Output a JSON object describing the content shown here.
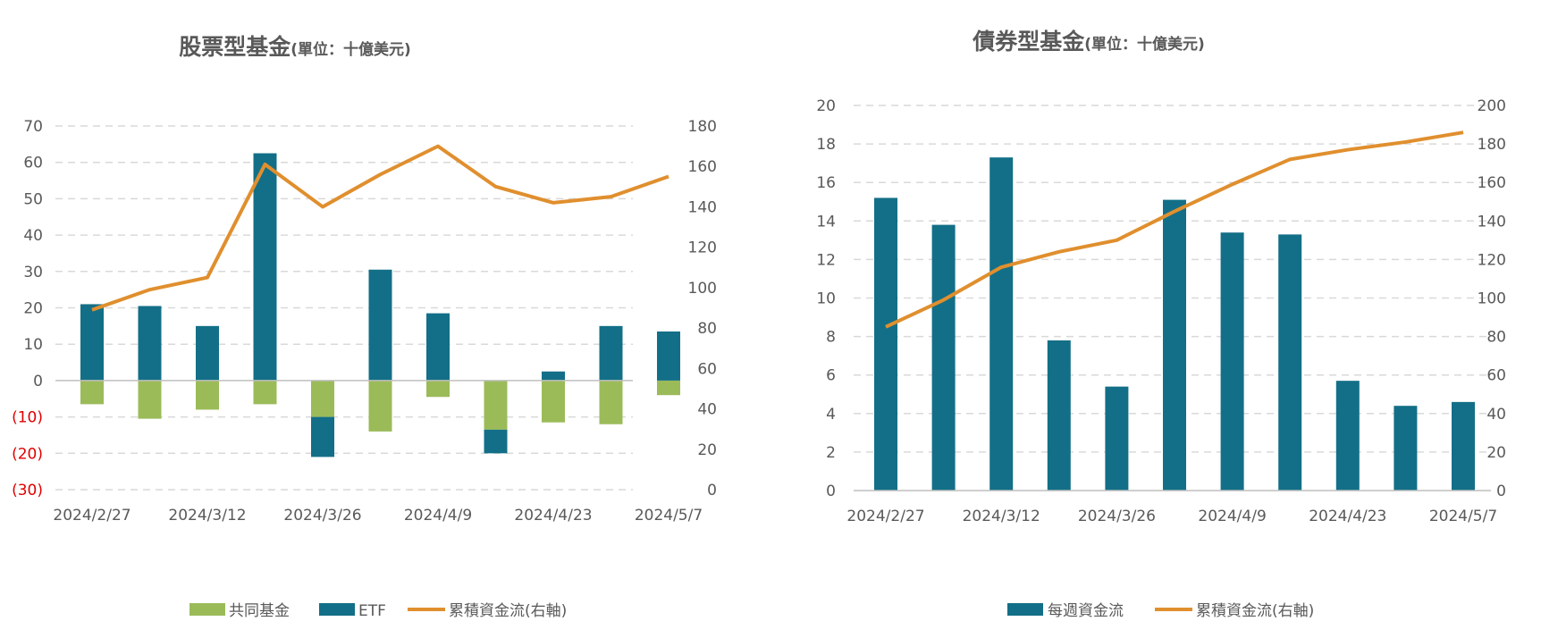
{
  "colors": {
    "mutual": "#9bbb59",
    "etf": "#136f87",
    "cum": "#e08f2e",
    "neg_label": "#e00000"
  },
  "chart_data": [
    {
      "type": "bar",
      "title": "股票型基金",
      "subtitle": "(單位：十億美元)",
      "x_tick_labels": [
        "2024/2/27",
        "2024/3/12",
        "2024/3/26",
        "2024/4/9",
        "2024/4/23",
        "2024/5/7"
      ],
      "y_left": {
        "ylim": [
          -30,
          70
        ],
        "ticks": [
          "70",
          "60",
          "50",
          "40",
          "30",
          "20",
          "10",
          "0",
          "(10)",
          "(20)",
          "(30)"
        ]
      },
      "y_right": {
        "ylim": [
          0,
          180
        ],
        "ticks": [
          "180",
          "160",
          "140",
          "120",
          "100",
          "80",
          "60",
          "40",
          "20",
          "0"
        ]
      },
      "grid": true,
      "legend_position": "bottom",
      "series": [
        {
          "name": "共同基金",
          "kind": "bar",
          "axis": "left",
          "values": [
            -6.5,
            -10.5,
            -8,
            -6.5,
            -10,
            -14,
            -4.5,
            -13.5,
            -11.5,
            -12,
            -4
          ]
        },
        {
          "name": "ETF",
          "kind": "bar",
          "axis": "left",
          "values": [
            21,
            20.5,
            15,
            62.5,
            -11,
            30.5,
            18.5,
            -6.5,
            2.5,
            15,
            13.5
          ]
        },
        {
          "name": "累積資金流(右軸)",
          "kind": "line",
          "axis": "right",
          "values": [
            89,
            99,
            105,
            161,
            140,
            156,
            170,
            150,
            142,
            145,
            155
          ]
        }
      ]
    },
    {
      "type": "bar",
      "title": "債券型基金",
      "subtitle": "(單位：十億美元)",
      "x_tick_labels": [
        "2024/2/27",
        "2024/3/12",
        "2024/3/26",
        "2024/4/9",
        "2024/4/23",
        "2024/5/7"
      ],
      "y_left": {
        "ylim": [
          0,
          20
        ],
        "ticks": [
          "20",
          "18",
          "16",
          "14",
          "12",
          "10",
          "8",
          "6",
          "4",
          "2",
          "0"
        ]
      },
      "y_right": {
        "ylim": [
          0,
          200
        ],
        "ticks": [
          "200",
          "180",
          "160",
          "140",
          "120",
          "100",
          "80",
          "60",
          "40",
          "20",
          "0"
        ]
      },
      "grid": true,
      "legend_position": "bottom",
      "series": [
        {
          "name": "每週資金流",
          "kind": "bar",
          "axis": "left",
          "values": [
            15.2,
            13.8,
            17.3,
            7.8,
            5.4,
            15.1,
            13.4,
            13.3,
            5.7,
            4.4,
            4.6
          ]
        },
        {
          "name": "累積資金流(右軸)",
          "kind": "line",
          "axis": "right",
          "values": [
            85,
            99,
            116,
            124,
            130,
            145,
            159,
            172,
            177,
            181,
            186
          ]
        }
      ]
    }
  ]
}
